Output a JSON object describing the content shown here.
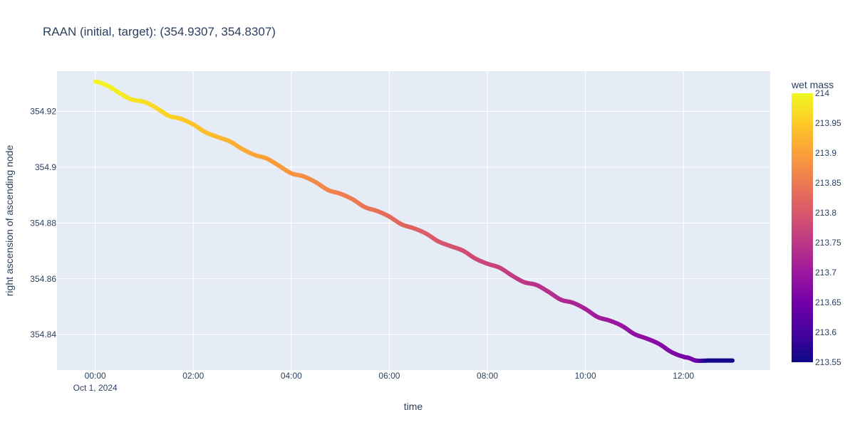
{
  "chart_data": {
    "type": "line",
    "title": "RAAN (initial, target): (354.9307, 354.8307)",
    "xlabel": "time",
    "ylabel": "right ascension of ascending node",
    "x_ticks": [
      {
        "value": 0,
        "label": "00:00",
        "sublabel": "Oct 1, 2024"
      },
      {
        "value": 2,
        "label": "02:00",
        "sublabel": ""
      },
      {
        "value": 4,
        "label": "04:00",
        "sublabel": ""
      },
      {
        "value": 6,
        "label": "06:00",
        "sublabel": ""
      },
      {
        "value": 8,
        "label": "08:00",
        "sublabel": ""
      },
      {
        "value": 10,
        "label": "10:00",
        "sublabel": ""
      },
      {
        "value": 12,
        "label": "12:00",
        "sublabel": ""
      }
    ],
    "y_ticks": [
      {
        "value": 354.84,
        "label": "354.84"
      },
      {
        "value": 354.86,
        "label": "354.86"
      },
      {
        "value": 354.88,
        "label": "354.88"
      },
      {
        "value": 354.9,
        "label": "354.9"
      },
      {
        "value": 354.92,
        "label": "354.92"
      }
    ],
    "xlim": [
      "2024-10-01 00:00 - 0.78 h",
      "2024-10-01 13:46"
    ],
    "xlim_hours": [
      -0.78,
      13.77
    ],
    "ylim": [
      354.8273,
      354.9344
    ],
    "grid": true,
    "series": [
      {
        "x_hours": [
          0,
          0.25,
          0.5,
          0.75,
          1.0,
          1.25,
          1.5,
          1.75,
          2.0,
          2.25,
          2.5,
          2.75,
          3.0,
          3.25,
          3.5,
          3.75,
          4.0,
          4.25,
          4.5,
          4.75,
          5.0,
          5.25,
          5.5,
          5.75,
          6.0,
          6.25,
          6.5,
          6.75,
          7.0,
          7.25,
          7.5,
          7.75,
          8.0,
          8.25,
          8.5,
          8.75,
          9.0,
          9.25,
          9.5,
          9.75,
          10.0,
          10.25,
          10.5,
          10.75,
          11.0,
          11.25,
          11.5,
          11.75,
          12.0,
          12.1,
          12.25,
          12.5,
          12.75,
          13.0
        ],
        "raan_deg": [
          354.9307,
          354.9292,
          354.9265,
          354.9242,
          354.9234,
          354.9212,
          354.9184,
          354.9173,
          354.9153,
          354.9125,
          354.9108,
          354.9092,
          354.9065,
          354.9044,
          354.9031,
          354.9005,
          354.8978,
          354.8967,
          354.8946,
          354.8918,
          354.8905,
          354.8885,
          354.8857,
          354.8843,
          354.8823,
          354.8795,
          354.8781,
          354.8762,
          354.8734,
          354.8717,
          354.8701,
          354.8673,
          354.8654,
          354.864,
          354.8612,
          354.8588,
          354.8578,
          354.8553,
          354.8525,
          354.8514,
          354.8492,
          354.8463,
          354.845,
          354.8431,
          354.8402,
          354.8386,
          354.8367,
          354.8338,
          354.8321,
          354.8317,
          354.8307,
          354.8307,
          354.8307,
          354.8307
        ],
        "wet_mass": [
          213.998,
          213.993,
          213.986,
          213.979,
          213.972,
          213.965,
          213.958,
          213.951,
          213.944,
          213.937,
          213.93,
          213.923,
          213.916,
          213.909,
          213.902,
          213.895,
          213.887,
          213.88,
          213.873,
          213.866,
          213.859,
          213.852,
          213.845,
          213.838,
          213.83,
          213.823,
          213.816,
          213.809,
          213.802,
          213.795,
          213.787,
          213.78,
          213.773,
          213.766,
          213.759,
          213.752,
          213.745,
          213.738,
          213.731,
          213.724,
          213.716,
          213.709,
          213.702,
          213.695,
          213.688,
          213.681,
          213.674,
          213.667,
          213.66,
          213.658,
          213.655,
          213.555,
          213.555,
          213.555
        ]
      }
    ],
    "colorbar": {
      "title": "wet mass",
      "colorscale": "plasma",
      "colors": [
        "#0d0887",
        "#46039f",
        "#7201a8",
        "#9c179e",
        "#bd3786",
        "#d8576b",
        "#ed7953",
        "#fb9f3a",
        "#fdca26",
        "#f0f921"
      ],
      "range": [
        213.55,
        214
      ],
      "ticks": [
        {
          "value": 213.55,
          "label": "213.55"
        },
        {
          "value": 213.6,
          "label": "213.6"
        },
        {
          "value": 213.65,
          "label": "213.65"
        },
        {
          "value": 213.7,
          "label": "213.7"
        },
        {
          "value": 213.75,
          "label": "213.75"
        },
        {
          "value": 213.8,
          "label": "213.8"
        },
        {
          "value": 213.85,
          "label": "213.85"
        },
        {
          "value": 213.9,
          "label": "213.9"
        },
        {
          "value": 213.95,
          "label": "213.95"
        },
        {
          "value": 214,
          "label": "214"
        }
      ]
    },
    "colors": {
      "plot_bg": "#e5ecf6",
      "grid": "#ffffff",
      "text": "#2a3f5f"
    }
  }
}
